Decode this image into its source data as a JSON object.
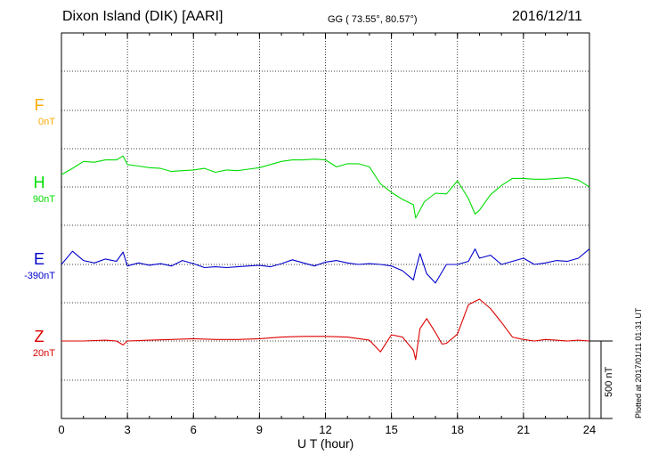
{
  "header": {
    "title": "Dixon Island (DIK)  [AARI]",
    "coords": "GG ( 73.55°,  80.57°)",
    "date": "2016/12/11",
    "plotted": "Plotted at 2017/01/11 01:31  UT"
  },
  "chart_data": {
    "type": "line",
    "title": "Dixon Island (DIK)  [AARI]",
    "xlabel": "U T (hour)",
    "xlim": [
      0,
      24
    ],
    "x_ticks": [
      "0",
      "3",
      "6",
      "9",
      "12",
      "15",
      "18",
      "21",
      "24"
    ],
    "grid": true,
    "scale_bar_label": "500 nT",
    "components": [
      {
        "name": "F",
        "baseline_label": "0nT",
        "color": "#ffaa00",
        "x": [],
        "y": []
      },
      {
        "name": "H",
        "baseline_label": "90nT",
        "color": "#00dd00",
        "x": [
          0,
          0.5,
          1,
          1.5,
          2,
          2.5,
          2.8,
          3,
          3.5,
          4,
          4.5,
          5,
          5.5,
          6,
          6.5,
          7,
          7.5,
          8,
          8.5,
          9,
          9.5,
          10,
          10.5,
          11,
          11.5,
          12,
          12.5,
          13,
          13.5,
          14,
          14.5,
          15,
          15.5,
          16,
          16.1,
          16.5,
          17,
          17.5,
          18,
          18.5,
          18.8,
          19,
          19.5,
          20,
          20.5,
          21,
          21.5,
          22,
          22.5,
          23,
          23.5,
          24
        ],
        "y": [
          80,
          120,
          165,
          160,
          175,
          175,
          200,
          145,
          135,
          125,
          120,
          100,
          105,
          110,
          120,
          95,
          110,
          105,
          115,
          125,
          145,
          165,
          175,
          175,
          180,
          175,
          130,
          150,
          150,
          130,
          20,
          -35,
          -80,
          -115,
          -200,
          -95,
          -40,
          -45,
          40,
          -75,
          -175,
          -150,
          -50,
          10,
          55,
          55,
          50,
          50,
          55,
          60,
          45,
          0
        ]
      },
      {
        "name": "E",
        "baseline_label": "-390nT",
        "color": "#0000cc",
        "x": [
          0,
          0.5,
          1,
          1.5,
          2,
          2.5,
          2.8,
          3,
          3.5,
          4,
          4.5,
          5,
          5.5,
          6,
          6.5,
          7,
          7.5,
          8,
          8.5,
          9,
          9.5,
          10,
          10.5,
          11,
          11.5,
          12,
          12.5,
          13,
          13.5,
          14,
          14.5,
          15,
          15.5,
          16,
          16.1,
          16.3,
          16.6,
          17,
          17.5,
          18,
          18.5,
          18.8,
          19,
          19.5,
          20,
          20.5,
          21,
          21.5,
          22,
          22.5,
          23,
          23.5,
          24
        ],
        "y": [
          0,
          85,
          25,
          10,
          35,
          20,
          80,
          -10,
          10,
          -5,
          5,
          -10,
          25,
          5,
          -20,
          -15,
          -20,
          -15,
          -10,
          -5,
          -15,
          5,
          30,
          10,
          -10,
          15,
          25,
          10,
          0,
          5,
          0,
          -10,
          -40,
          -100,
          -35,
          70,
          -60,
          -120,
          0,
          0,
          20,
          100,
          40,
          60,
          0,
          20,
          40,
          0,
          10,
          25,
          20,
          40,
          100
        ]
      },
      {
        "name": "Z",
        "baseline_label": "20nT",
        "color": "#dd0000",
        "x": [
          0,
          1,
          2,
          2.5,
          2.8,
          3,
          4,
          5,
          6,
          7,
          8,
          9,
          10,
          11,
          12,
          13,
          14,
          14.5,
          15,
          15.5,
          16,
          16.1,
          16.3,
          16.6,
          17,
          17.3,
          17.5,
          18,
          18.5,
          19,
          19.5,
          20,
          20.5,
          21,
          21.5,
          22,
          22.5,
          23,
          23.5,
          24
        ],
        "y": [
          0,
          0,
          5,
          0,
          -25,
          0,
          5,
          10,
          15,
          10,
          10,
          15,
          25,
          30,
          30,
          25,
          5,
          -70,
          40,
          25,
          -60,
          -120,
          80,
          145,
          55,
          -20,
          -15,
          45,
          235,
          270,
          210,
          120,
          25,
          10,
          0,
          10,
          5,
          0,
          5,
          0
        ]
      }
    ]
  }
}
